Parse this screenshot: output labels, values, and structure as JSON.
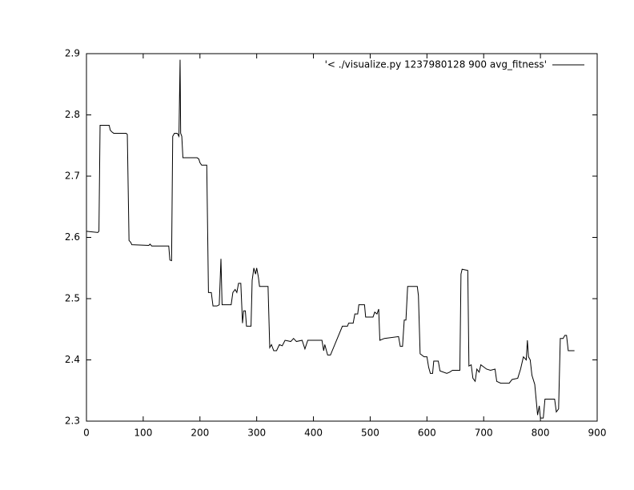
{
  "chart_data": {
    "type": "line",
    "xlim": [
      0,
      900
    ],
    "xticks": [
      0,
      100,
      200,
      300,
      400,
      500,
      600,
      700,
      800,
      900
    ],
    "ylim": [
      2.3,
      2.9
    ],
    "yticks": [
      2.3,
      2.4,
      2.5,
      2.6,
      2.7,
      2.8,
      2.9
    ],
    "legend": "top-right",
    "grid": false,
    "series": [
      {
        "name": "'< ./visualize.py 1237980128 900 avg_fitness'",
        "color": "#000000",
        "x": [
          0,
          20,
          22,
          24,
          40,
          42,
          45,
          48,
          70,
          72,
          75,
          78,
          80,
          110,
          112,
          115,
          145,
          147,
          150,
          152,
          155,
          160,
          163,
          165,
          166,
          168,
          170,
          195,
          198,
          200,
          203,
          212,
          215,
          220,
          223,
          230,
          234,
          237,
          239,
          255,
          258,
          262,
          265,
          268,
          272,
          275,
          277,
          280,
          282,
          290,
          292,
          295,
          298,
          300,
          303,
          305,
          320,
          323,
          326,
          330,
          335,
          340,
          345,
          350,
          360,
          365,
          370,
          380,
          385,
          390,
          410,
          415,
          418,
          420,
          425,
          430,
          451,
          460,
          462,
          470,
          473,
          478,
          480,
          490,
          492,
          505,
          508,
          512,
          515,
          517,
          525,
          550,
          553,
          557,
          560,
          563,
          566,
          583,
          585,
          588,
          595,
          600,
          603,
          606,
          610,
          612,
          620,
          623,
          635,
          640,
          645,
          658,
          660,
          662,
          672,
          674,
          678,
          681,
          685,
          688,
          692,
          695,
          705,
          712,
          720,
          723,
          730,
          745,
          750,
          760,
          765,
          770,
          775,
          777,
          779,
          782,
          785,
          790,
          795,
          798,
          800,
          805,
          808,
          825,
          828,
          832,
          835,
          840,
          843,
          846,
          849,
          860
        ],
        "values": [
          2.61,
          2.608,
          2.61,
          2.783,
          2.783,
          2.775,
          2.772,
          2.77,
          2.77,
          2.768,
          2.595,
          2.592,
          2.588,
          2.587,
          2.589,
          2.586,
          2.586,
          2.563,
          2.562,
          2.765,
          2.77,
          2.77,
          2.765,
          2.89,
          2.77,
          2.765,
          2.73,
          2.73,
          2.728,
          2.722,
          2.718,
          2.718,
          2.51,
          2.51,
          2.488,
          2.488,
          2.49,
          2.565,
          2.49,
          2.49,
          2.51,
          2.515,
          2.51,
          2.525,
          2.525,
          2.46,
          2.48,
          2.48,
          2.455,
          2.455,
          2.53,
          2.55,
          2.54,
          2.55,
          2.535,
          2.52,
          2.52,
          2.42,
          2.425,
          2.415,
          2.415,
          2.425,
          2.423,
          2.432,
          2.43,
          2.435,
          2.43,
          2.432,
          2.418,
          2.432,
          2.432,
          2.432,
          2.415,
          2.425,
          2.408,
          2.408,
          2.455,
          2.455,
          2.46,
          2.46,
          2.475,
          2.475,
          2.49,
          2.49,
          2.47,
          2.47,
          2.478,
          2.475,
          2.483,
          2.432,
          2.435,
          2.438,
          2.422,
          2.422,
          2.465,
          2.465,
          2.52,
          2.52,
          2.505,
          2.41,
          2.405,
          2.405,
          2.388,
          2.378,
          2.378,
          2.398,
          2.398,
          2.382,
          2.378,
          2.38,
          2.383,
          2.383,
          2.54,
          2.548,
          2.546,
          2.39,
          2.392,
          2.37,
          2.365,
          2.385,
          2.38,
          2.392,
          2.385,
          2.383,
          2.385,
          2.365,
          2.362,
          2.362,
          2.368,
          2.37,
          2.385,
          2.405,
          2.4,
          2.432,
          2.405,
          2.4,
          2.375,
          2.36,
          2.31,
          2.325,
          2.305,
          2.305,
          2.336,
          2.336,
          2.315,
          2.32,
          2.435,
          2.435,
          2.44,
          2.44,
          2.415,
          2.415
        ]
      }
    ]
  }
}
